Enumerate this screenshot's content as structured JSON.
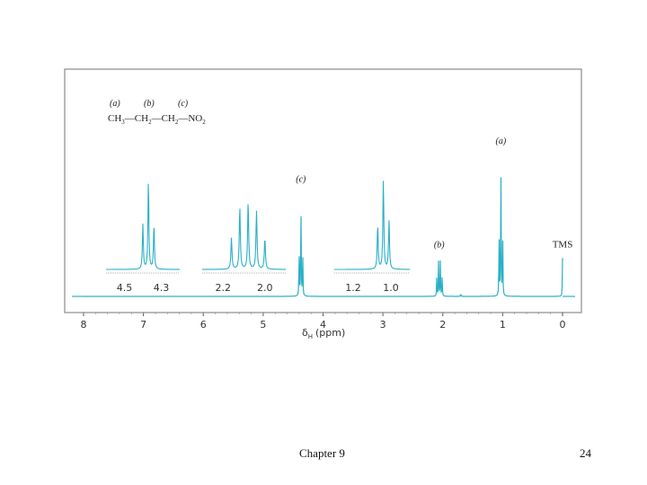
{
  "chart_data": {
    "type": "line",
    "xlabel_symbol": "δ",
    "xlabel_subscript": "H",
    "xlabel_units": "(ppm)",
    "xlim": [
      8.2,
      -0.2
    ],
    "x_ticks": [
      "8",
      "7",
      "6",
      "5",
      "4",
      "3",
      "2",
      "1",
      "0"
    ],
    "x_tick_values": [
      8,
      7,
      6,
      5,
      4,
      3,
      2,
      1,
      0
    ],
    "trace_color": "#2ab0c6",
    "peaks": [
      {
        "label": "(c)",
        "x": 4.37,
        "lines": [
          [
            4.4,
            0.35
          ],
          [
            4.37,
            0.73
          ],
          [
            4.34,
            0.35
          ]
        ]
      },
      {
        "label": "(b)",
        "x": 2.06,
        "lines": [
          [
            2.1,
            0.14
          ],
          [
            2.07,
            0.27
          ],
          [
            2.04,
            0.27
          ],
          [
            2.01,
            0.14
          ]
        ]
      },
      {
        "label": "(a)",
        "x": 1.03,
        "lines": [
          [
            1.06,
            0.46
          ],
          [
            1.03,
            1.0
          ],
          [
            1.0,
            0.46
          ]
        ]
      },
      {
        "label": "TMS",
        "x": 0.0,
        "lines": [
          [
            0.0,
            0.27
          ]
        ]
      }
    ],
    "minor_peaks": [
      [
        1.7,
        0.02
      ]
    ],
    "insets": [
      {
        "tick_labels": [
          "4.5",
          "4.3"
        ],
        "tick_values": [
          4.5,
          4.3
        ],
        "xlim": [
          4.6,
          4.2
        ],
        "lines": [
          [
            4.4,
            0.5
          ],
          [
            4.37,
            1.0
          ],
          [
            4.34,
            0.5
          ]
        ]
      },
      {
        "tick_labels": [
          "2.2",
          "2.0"
        ],
        "tick_values": [
          2.2,
          2.0
        ],
        "xlim": [
          2.3,
          1.9
        ],
        "lines": [
          [
            2.16,
            0.35
          ],
          [
            2.12,
            0.7
          ],
          [
            2.08,
            0.75
          ],
          [
            2.04,
            0.65
          ],
          [
            2.0,
            0.35
          ]
        ]
      },
      {
        "tick_labels": [
          "1.2",
          "1.0"
        ],
        "tick_values": [
          1.2,
          1.0
        ],
        "xlim": [
          1.3,
          0.9
        ],
        "lines": [
          [
            1.07,
            0.5
          ],
          [
            1.04,
            1.0
          ],
          [
            1.01,
            0.55
          ]
        ]
      }
    ],
    "structure": {
      "labels": [
        "(a)",
        "(b)",
        "(c)"
      ],
      "groups": [
        {
          "main": "CH",
          "sub": "3"
        },
        {
          "main": "CH",
          "sub": "2"
        },
        {
          "main": "CH",
          "sub": "2"
        },
        {
          "main": "NO",
          "sub": "2"
        }
      ],
      "bond": "—"
    }
  },
  "footer": {
    "chapter": "Chapter 9",
    "page": "24"
  }
}
